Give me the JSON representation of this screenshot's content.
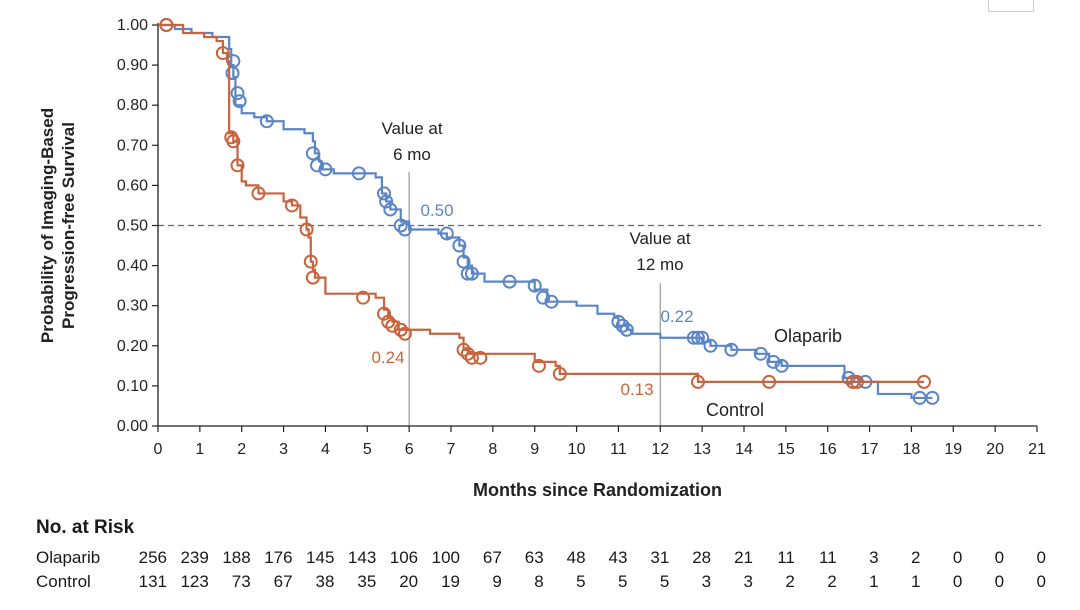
{
  "chart_data": {
    "type": "line",
    "title": "",
    "ylabel": "Probability of Imaging-Based Progression-free Survival",
    "ylabel_lines": [
      "Probability of Imaging-Based",
      "Progression-free Survival"
    ],
    "xlabel": "Months since Randomization",
    "xlim": [
      0,
      21
    ],
    "ylim": [
      0,
      1
    ],
    "xticks": [
      "0",
      "1",
      "2",
      "3",
      "4",
      "5",
      "6",
      "7",
      "8",
      "9",
      "10",
      "11",
      "12",
      "13",
      "14",
      "15",
      "16",
      "17",
      "18",
      "19",
      "20",
      "21"
    ],
    "yticks": [
      "0.00",
      "0.10",
      "0.20",
      "0.30",
      "0.40",
      "0.50",
      "0.60",
      "0.70",
      "0.80",
      "0.90",
      "1.00"
    ],
    "reference_line_y": 0.5,
    "series": [
      {
        "name": "Olaparib",
        "color": "#5b86c5",
        "steps": [
          [
            0,
            1.0
          ],
          [
            0.4,
            0.99
          ],
          [
            0.8,
            0.98
          ],
          [
            1.3,
            0.97
          ],
          [
            1.7,
            0.94
          ],
          [
            1.75,
            0.9
          ],
          [
            1.8,
            0.87
          ],
          [
            1.85,
            0.8
          ],
          [
            2.0,
            0.78
          ],
          [
            2.3,
            0.77
          ],
          [
            2.6,
            0.76
          ],
          [
            3.0,
            0.74
          ],
          [
            3.5,
            0.73
          ],
          [
            3.7,
            0.71
          ],
          [
            3.75,
            0.68
          ],
          [
            3.85,
            0.66
          ],
          [
            3.9,
            0.64
          ],
          [
            4.2,
            0.63
          ],
          [
            5.2,
            0.62
          ],
          [
            5.35,
            0.58
          ],
          [
            5.45,
            0.56
          ],
          [
            5.55,
            0.54
          ],
          [
            5.8,
            0.51
          ],
          [
            6.0,
            0.49
          ],
          [
            6.7,
            0.48
          ],
          [
            6.9,
            0.47
          ],
          [
            7.2,
            0.45
          ],
          [
            7.3,
            0.42
          ],
          [
            7.4,
            0.4
          ],
          [
            7.5,
            0.38
          ],
          [
            7.8,
            0.36
          ],
          [
            8.6,
            0.36
          ],
          [
            9.0,
            0.34
          ],
          [
            9.3,
            0.31
          ],
          [
            10.0,
            0.3
          ],
          [
            10.5,
            0.28
          ],
          [
            10.9,
            0.27
          ],
          [
            11.0,
            0.25
          ],
          [
            11.2,
            0.24
          ],
          [
            11.3,
            0.23
          ],
          [
            12.0,
            0.22
          ],
          [
            13.0,
            0.21
          ],
          [
            13.2,
            0.2
          ],
          [
            13.7,
            0.19
          ],
          [
            14.3,
            0.18
          ],
          [
            14.6,
            0.16
          ],
          [
            14.9,
            0.15
          ],
          [
            15.8,
            0.15
          ],
          [
            16.4,
            0.12
          ],
          [
            16.8,
            0.11
          ],
          [
            17.0,
            0.11
          ],
          [
            17.2,
            0.08
          ],
          [
            18.0,
            0.07
          ],
          [
            18.5,
            0.07
          ]
        ],
        "censor": [
          [
            0.2,
            1.0
          ],
          [
            1.8,
            0.91
          ],
          [
            1.78,
            0.88
          ],
          [
            1.9,
            0.83
          ],
          [
            1.95,
            0.81
          ],
          [
            2.6,
            0.76
          ],
          [
            3.7,
            0.68
          ],
          [
            3.8,
            0.65
          ],
          [
            4.0,
            0.64
          ],
          [
            4.8,
            0.63
          ],
          [
            5.4,
            0.58
          ],
          [
            5.45,
            0.56
          ],
          [
            5.55,
            0.54
          ],
          [
            5.8,
            0.5
          ],
          [
            5.9,
            0.49
          ],
          [
            6.9,
            0.48
          ],
          [
            7.2,
            0.45
          ],
          [
            7.3,
            0.41
          ],
          [
            7.4,
            0.38
          ],
          [
            7.5,
            0.38
          ],
          [
            8.4,
            0.36
          ],
          [
            9.0,
            0.35
          ],
          [
            9.2,
            0.32
          ],
          [
            9.4,
            0.31
          ],
          [
            11.0,
            0.26
          ],
          [
            11.1,
            0.25
          ],
          [
            11.2,
            0.24
          ],
          [
            12.8,
            0.22
          ],
          [
            12.9,
            0.22
          ],
          [
            13.0,
            0.22
          ],
          [
            13.2,
            0.2
          ],
          [
            13.7,
            0.19
          ],
          [
            14.4,
            0.18
          ],
          [
            14.7,
            0.16
          ],
          [
            14.9,
            0.15
          ],
          [
            16.5,
            0.12
          ],
          [
            16.6,
            0.11
          ],
          [
            16.9,
            0.11
          ],
          [
            18.2,
            0.07
          ],
          [
            18.5,
            0.07
          ]
        ]
      },
      {
        "name": "Control",
        "color": "#c8643d",
        "steps": [
          [
            0,
            1.0
          ],
          [
            0.6,
            0.98
          ],
          [
            1.1,
            0.97
          ],
          [
            1.4,
            0.96
          ],
          [
            1.55,
            0.93
          ],
          [
            1.65,
            0.91
          ],
          [
            1.7,
            0.73
          ],
          [
            1.8,
            0.71
          ],
          [
            1.9,
            0.65
          ],
          [
            2.0,
            0.61
          ],
          [
            2.1,
            0.6
          ],
          [
            2.4,
            0.58
          ],
          [
            3.0,
            0.56
          ],
          [
            3.2,
            0.55
          ],
          [
            3.4,
            0.52
          ],
          [
            3.55,
            0.49
          ],
          [
            3.6,
            0.47
          ],
          [
            3.65,
            0.41
          ],
          [
            3.7,
            0.39
          ],
          [
            3.75,
            0.37
          ],
          [
            4.0,
            0.33
          ],
          [
            5.2,
            0.32
          ],
          [
            5.4,
            0.29
          ],
          [
            5.5,
            0.27
          ],
          [
            5.6,
            0.26
          ],
          [
            5.75,
            0.24
          ],
          [
            6.0,
            0.24
          ],
          [
            6.5,
            0.23
          ],
          [
            7.2,
            0.22
          ],
          [
            7.3,
            0.19
          ],
          [
            7.4,
            0.18
          ],
          [
            8.5,
            0.18
          ],
          [
            9.0,
            0.16
          ],
          [
            9.5,
            0.15
          ],
          [
            9.6,
            0.13
          ],
          [
            12.9,
            0.11
          ],
          [
            18.3,
            0.11
          ]
        ],
        "censor": [
          [
            0.2,
            1.0
          ],
          [
            1.55,
            0.93
          ],
          [
            1.75,
            0.72
          ],
          [
            1.8,
            0.71
          ],
          [
            1.9,
            0.65
          ],
          [
            2.4,
            0.58
          ],
          [
            3.2,
            0.55
          ],
          [
            3.55,
            0.49
          ],
          [
            3.65,
            0.41
          ],
          [
            3.7,
            0.37
          ],
          [
            4.9,
            0.32
          ],
          [
            5.4,
            0.28
          ],
          [
            5.5,
            0.26
          ],
          [
            5.6,
            0.25
          ],
          [
            5.8,
            0.24
          ],
          [
            5.9,
            0.23
          ],
          [
            7.3,
            0.19
          ],
          [
            7.4,
            0.18
          ],
          [
            7.5,
            0.17
          ],
          [
            7.7,
            0.17
          ],
          [
            9.1,
            0.15
          ],
          [
            9.6,
            0.13
          ],
          [
            12.9,
            0.11
          ],
          [
            14.6,
            0.11
          ],
          [
            16.6,
            0.11
          ],
          [
            16.7,
            0.11
          ],
          [
            18.3,
            0.11
          ]
        ]
      }
    ],
    "annotations": [
      {
        "lines": [
          "Value at",
          "6 mo"
        ],
        "x": 6
      },
      {
        "lines": [
          "Value at",
          "12 mo"
        ],
        "x": 12
      }
    ],
    "value_labels": [
      {
        "text": "0.50",
        "series": "Olaparib"
      },
      {
        "text": "0.24",
        "series": "Control"
      },
      {
        "text": "0.22",
        "series": "Olaparib"
      },
      {
        "text": "0.13",
        "series": "Control"
      }
    ],
    "series_labels": [
      {
        "text": "Olaparib"
      },
      {
        "text": "Control"
      }
    ]
  },
  "risk_table": {
    "title": "No. at Risk",
    "rows": [
      {
        "label": "Olaparib",
        "values": [
          "256",
          "239",
          "188",
          "176",
          "145",
          "143",
          "106",
          "100",
          "67",
          "63",
          "48",
          "43",
          "31",
          "28",
          "21",
          "11",
          "11",
          "3",
          "2",
          "0",
          "0",
          "0"
        ]
      },
      {
        "label": "Control",
        "values": [
          "131",
          "123",
          "73",
          "67",
          "38",
          "35",
          "20",
          "19",
          "9",
          "8",
          "5",
          "5",
          "5",
          "3",
          "3",
          "2",
          "2",
          "1",
          "1",
          "0",
          "0",
          "0"
        ]
      }
    ]
  }
}
